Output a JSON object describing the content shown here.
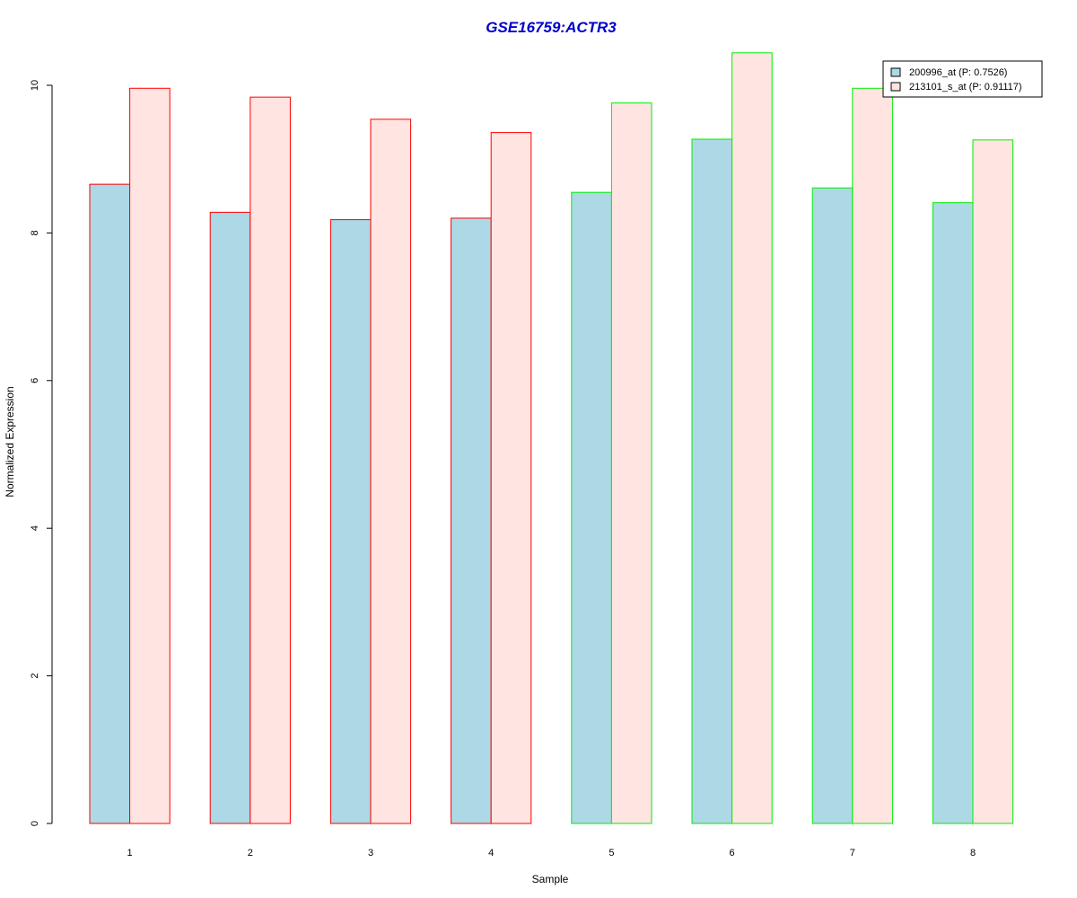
{
  "chart_data": {
    "type": "bar",
    "title": "GSE16759:ACTR3",
    "xlabel": "Sample",
    "ylabel": "Normalized Expression",
    "categories": [
      "1",
      "2",
      "3",
      "4",
      "5",
      "6",
      "7",
      "8"
    ],
    "ylim": [
      0,
      10
    ],
    "yticks": [
      0,
      2,
      4,
      6,
      8,
      10
    ],
    "grid": false,
    "legend_position": "top-right",
    "group_border_colors": [
      "#ff0000",
      "#ff0000",
      "#ff0000",
      "#ff0000",
      "#00ee00",
      "#00ee00",
      "#00ee00",
      "#00ee00"
    ],
    "series": [
      {
        "name": "200996_at (P: 0.7526)",
        "color": "#add8e6",
        "values": [
          8.66,
          8.28,
          8.18,
          8.2,
          8.55,
          9.27,
          8.61,
          8.41
        ]
      },
      {
        "name": "213101_s_at (P: 0.91117)",
        "color": "#ffe4e1",
        "values": [
          9.96,
          9.84,
          9.54,
          9.36,
          9.76,
          10.44,
          9.96,
          9.26
        ]
      }
    ]
  }
}
